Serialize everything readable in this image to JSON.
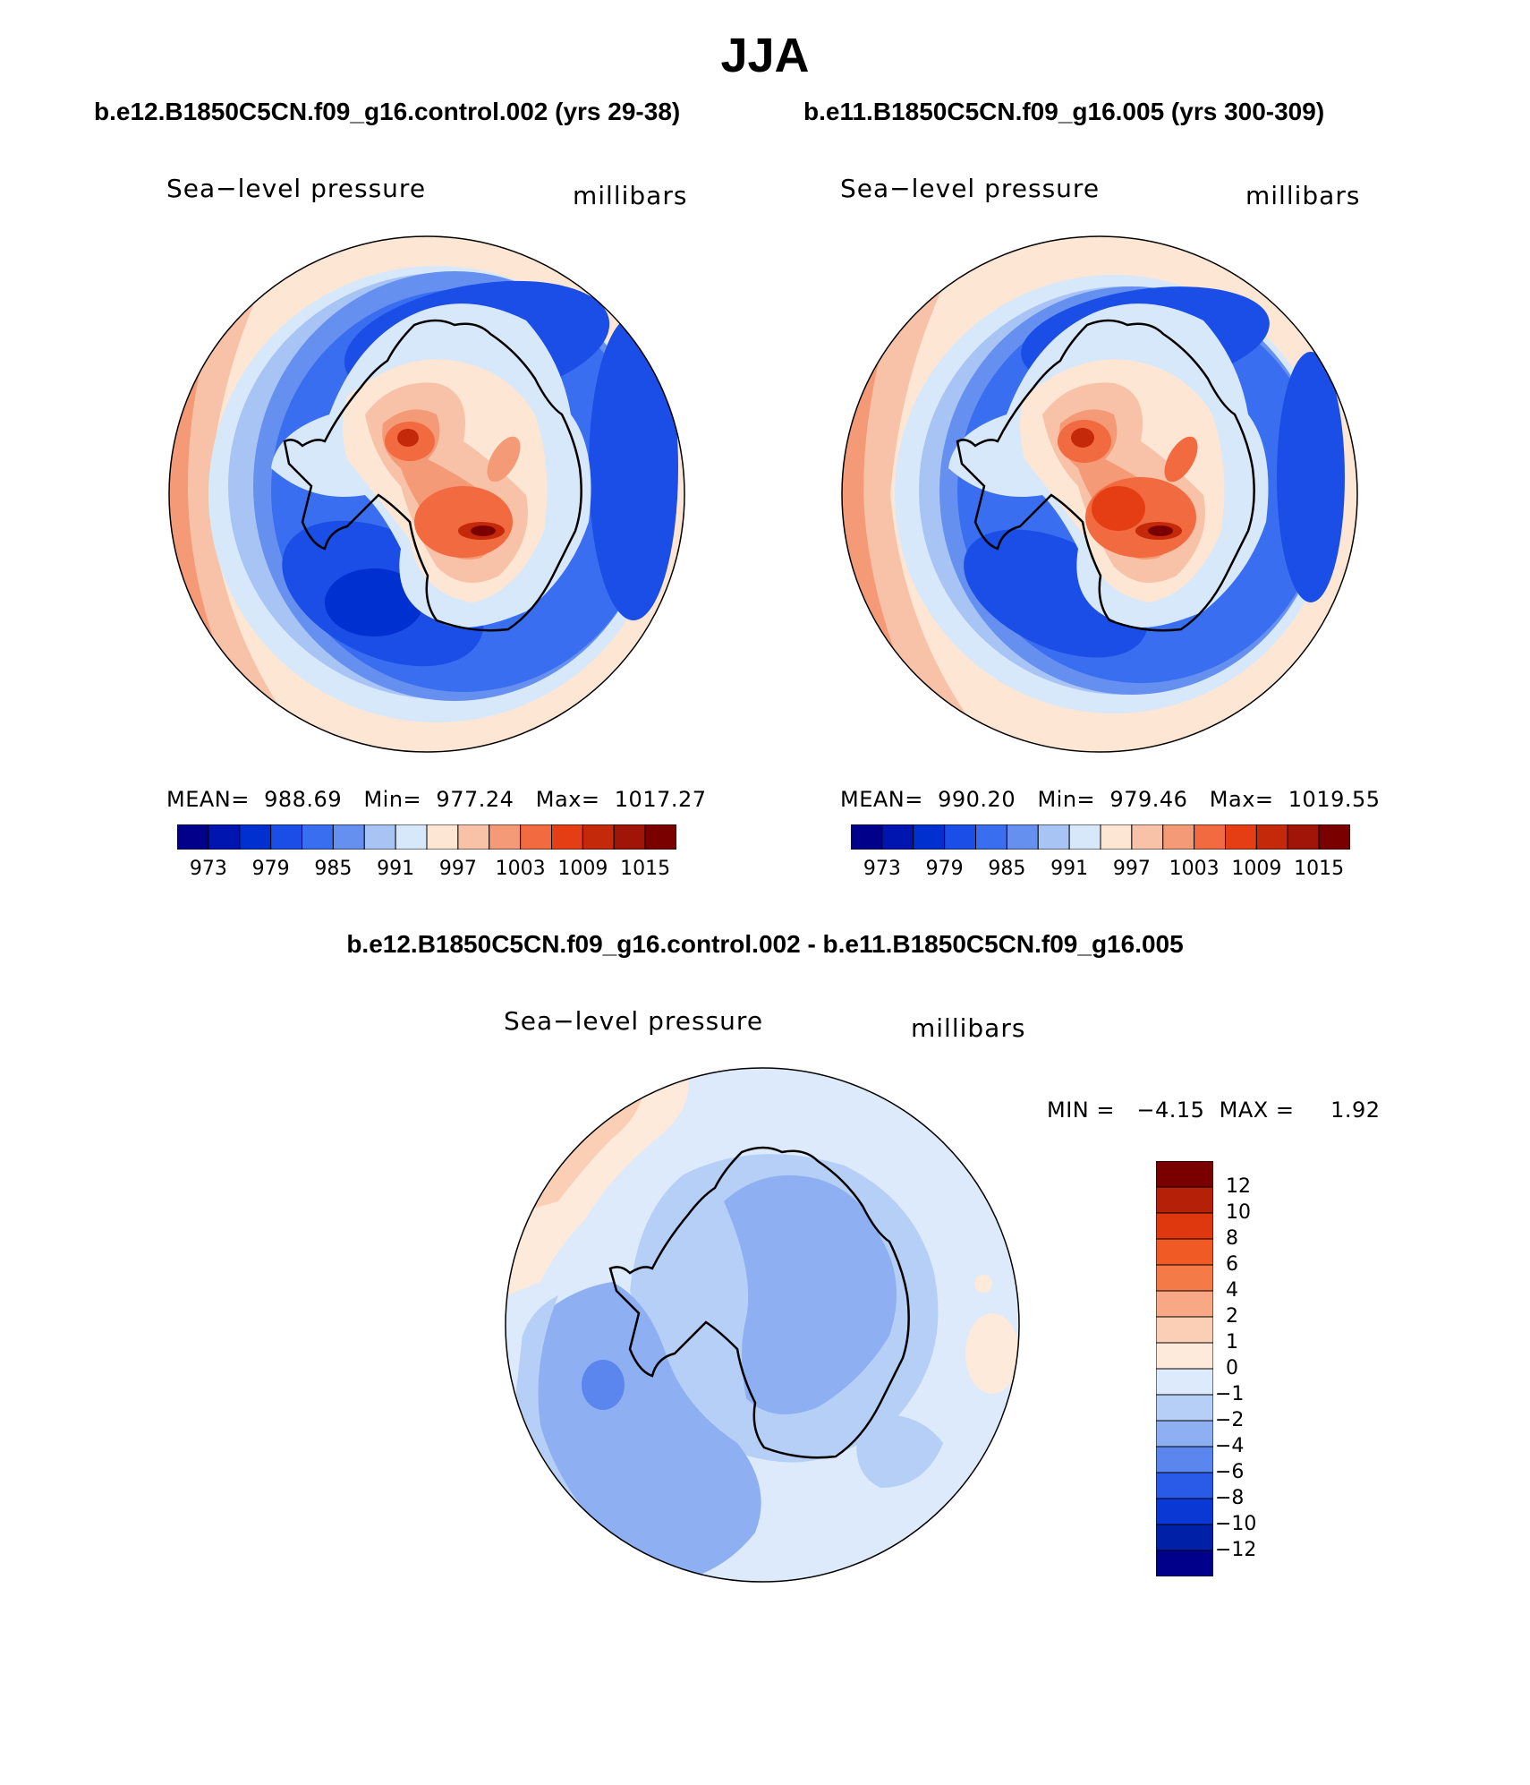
{
  "title": "JJA",
  "panels": [
    {
      "case_title": "b.e12.B1850C5CN.f09_g16.control.002 (yrs 29-38)",
      "variable": "Sea−level pressure",
      "units": "millibars",
      "stats": "MEAN=  988.69   Min=  977.24   Max=  1017.27",
      "mean": 988.69,
      "min": 977.24,
      "max": 1017.27
    },
    {
      "case_title": "b.e11.B1850C5CN.f09_g16.005 (yrs 300-309)",
      "variable": "Sea−level pressure",
      "units": "millibars",
      "stats": "MEAN=  990.20   Min=  979.46   Max=  1019.55",
      "mean": 990.2,
      "min": 979.46,
      "max": 1019.55
    }
  ],
  "colorbar_top": {
    "ticks": [
      "973",
      "979",
      "985",
      "991",
      "997",
      "1003",
      "1009",
      "1015"
    ],
    "colors": [
      "#00008b",
      "#0015b0",
      "#0030d0",
      "#1a4ee6",
      "#3a6ef0",
      "#6690f0",
      "#a8c4f5",
      "#d8e8fb",
      "#fde6d4",
      "#f8c2a8",
      "#f59a76",
      "#f26a40",
      "#e63e14",
      "#c42a0a",
      "#a01508",
      "#7a0000"
    ]
  },
  "diff_panel": {
    "title": "b.e12.B1850C5CN.f09_g16.control.002 - b.e11.B1850C5CN.f09_g16.005",
    "variable": "Sea−level pressure",
    "units": "millibars",
    "stats": "MIN =   −4.15  MAX =     1.92",
    "min": -4.15,
    "max": 1.92
  },
  "colorbar_diff": {
    "ticks": [
      "12",
      "10",
      "8",
      "6",
      "4",
      "2",
      "1",
      "0",
      "−1",
      "−2",
      "−4",
      "−6",
      "−8",
      "−10",
      "−12"
    ],
    "colors": [
      "#7a0000",
      "#b52008",
      "#e0380e",
      "#f05a25",
      "#f47a48",
      "#f8a884",
      "#fbcfb6",
      "#feeadb",
      "#dceafb",
      "#b6cff6",
      "#8eb0f2",
      "#5a86ee",
      "#2a5ae8",
      "#0a38d4",
      "#0020a8",
      "#00008b"
    ]
  },
  "colors": {
    "coast": "#000000",
    "land_outline": "#000000"
  }
}
